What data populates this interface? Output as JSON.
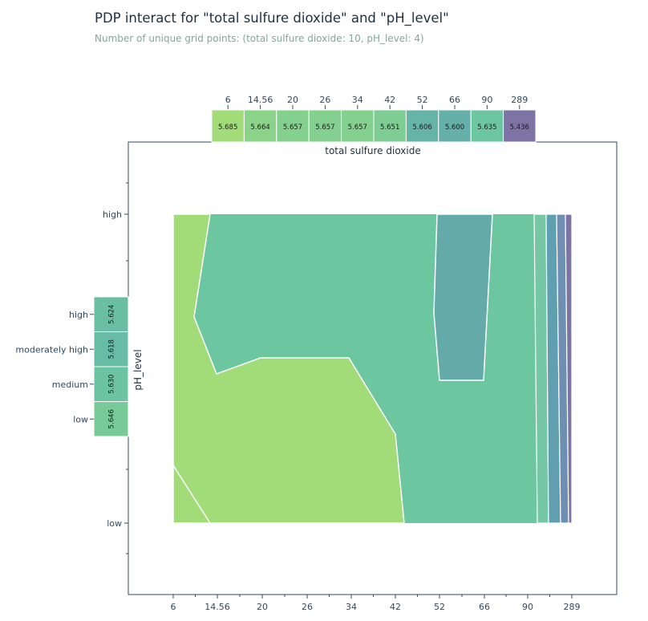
{
  "title": "PDP interact for \"total sulfure dioxide\" and \"pH_level\"",
  "subtitle": "Number of unique grid points: (total sulfure dioxide: 10, pH_level: 4)",
  "colors": {
    "light_green": "#a2dc79",
    "mid_green": "#6cc6a0",
    "teal": "#63aaa8",
    "sea": "#76c7a5",
    "blue_teal": "#5f9fb0",
    "slate": "#6f8fb2",
    "purple": "#7d73a4",
    "axis": "#34495e"
  },
  "chart_data": {
    "type": "heatmap",
    "xlabel": "total sulfure dioxide",
    "ylabel": "pH_level",
    "x_ticks": [
      "6",
      "14.56",
      "20",
      "26",
      "34",
      "42",
      "52",
      "66",
      "90",
      "289"
    ],
    "y_ticks": [
      "low",
      "medium",
      "moderately high",
      "high"
    ],
    "top_marginal": {
      "categories": [
        "6",
        "14.56",
        "20",
        "26",
        "34",
        "42",
        "52",
        "66",
        "90",
        "289"
      ],
      "values": [
        5.685,
        5.664,
        5.657,
        5.657,
        5.657,
        5.651,
        5.606,
        5.6,
        5.635,
        5.436
      ]
    },
    "left_marginal": {
      "categories": [
        "low",
        "medium",
        "moderately high",
        "high"
      ],
      "values": [
        5.646,
        5.63,
        5.618,
        5.624
      ]
    },
    "contour_levels": [
      5.35,
      5.45,
      5.55,
      5.6,
      5.65,
      5.7
    ]
  }
}
